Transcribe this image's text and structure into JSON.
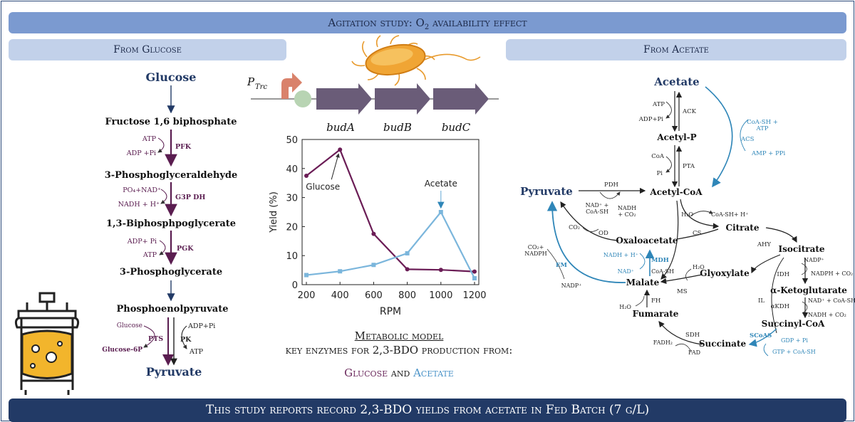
{
  "header": {
    "title": "Agitation study: O",
    "title_sub": "2",
    "title_tail": " availability effect"
  },
  "left_panel": {
    "title": "From Glucose"
  },
  "right_panel": {
    "title": "From Acetate"
  },
  "operon": {
    "promoter": "P",
    "promoter_sub": "Trc",
    "genes": [
      "budA",
      "budB",
      "budC"
    ]
  },
  "glucose_path": {
    "metabolites": [
      "Glucose",
      "Fructose 1,6 biphosphate",
      "3-Phosphoglyceraldehyde",
      "1,3-Biphosphpoglycerate",
      "3-Phosphoglycerate",
      "Phosphoenolpyruvate",
      "Pyruvate"
    ],
    "enzymes": [
      "PFK",
      "G3P DH",
      "PGK",
      "PTS",
      "PK"
    ],
    "cofactors": {
      "pfk_in": "ATP",
      "pfk_out": "ADP +Pi",
      "g3p_in": "PO₄+NAD⁺",
      "g3p_out": "NADH + H⁺",
      "pgk_in": "ADP+ Pi",
      "pgk_out": "ATP",
      "pts_in": "Glucose",
      "pts_out": "Glucose-6P",
      "pk_in": "ADP+Pi",
      "pk_out": "ATP"
    }
  },
  "acetate_path": {
    "metabolites": {
      "acetate": "Acetate",
      "acetyl_p": "Acetyl-P",
      "acetyl_coa": "Acetyl-CoA",
      "pyruvate": "Pyruvate",
      "oxaloacetate": "Oxaloacetate",
      "citrate": "Citrate",
      "isocitrate": "Isocitrate",
      "glyoxylate": "Glyoxylate",
      "malate": "Malate",
      "fumarate": "Fumarate",
      "akg": "α-Ketoglutarate",
      "succinyl": "Succinyl-CoA",
      "succinate": "Succinate"
    },
    "enzymes": {
      "ack": "ACK",
      "acs": "ACS",
      "pta": "PTA",
      "pdh": "PDH",
      "cs": "CS",
      "ahy": "AHY",
      "od": "OD",
      "mdh": "MDH",
      "em": "EM",
      "ms": "MS",
      "il": "IL",
      "idh": "IDH",
      "fh": "FH",
      "akdh": "αKDH",
      "sdh": "SDH",
      "scoas": "SCoAS"
    },
    "cofactors": {
      "ack_atp": "ATP",
      "ack_adp": "ADP+Pi",
      "acs_in": "CoA-SH +",
      "acs_in2": "ATP",
      "acs_out": "AMP + PPi",
      "pta_coa": "CoA",
      "pta_pi": "Pi",
      "pdh_in": "NAD⁺ +",
      "pdh_in2": "CoA-SH",
      "pdh_out": "NADH",
      "pdh_out2": "+ CO₂",
      "cs_h2o": "H₂O",
      "cs_out": "CoA-SH+ H⁺",
      "od_co2": "CO₂",
      "em_out": "CO₂+",
      "em_out2": "NADPH",
      "em_in": "NADP⁺",
      "mdh_out": "NADH + H⁺",
      "mdh_in": "NAD⁺",
      "ms_h2o": "H₂O",
      "ms_coa": "CoA-SH",
      "idh_in": "NADP⁺",
      "idh_out": "NADPH + CO₂",
      "akdh_in": "NAD⁺ + CoA-SH",
      "akdh_out": "NADH + CO₂",
      "fh_h2o": "H₂O",
      "sdh_fadh2": "FADH₂",
      "sdh_fad": "FAD",
      "scoas_in": "GDP + Pi",
      "scoas_out": "GTP + CoA-SH"
    }
  },
  "chart_data": {
    "type": "line",
    "xlabel": "RPM",
    "ylabel": "Yield (%)",
    "xlim": [
      200,
      1200
    ],
    "ylim": [
      0,
      50
    ],
    "xticks": [
      200,
      400,
      600,
      800,
      1000,
      1200
    ],
    "yticks": [
      0,
      10,
      20,
      30,
      40,
      50
    ],
    "series": [
      {
        "name": "Glucose",
        "color": "#6b1d56",
        "marker": "circle",
        "x": [
          200,
          400,
          600,
          800,
          1000,
          1200
        ],
        "y": [
          37.5,
          46.5,
          17.5,
          5.3,
          5.1,
          4.5
        ]
      },
      {
        "name": "Acetate",
        "color": "#7bb6dc",
        "marker": "square",
        "x": [
          200,
          400,
          600,
          800,
          1000,
          1200
        ],
        "y": [
          3.3,
          4.6,
          6.8,
          10.8,
          25,
          2.2
        ]
      }
    ]
  },
  "caption": {
    "line1": "Metabolic model",
    "line2": "key enzymes for 2,3-BDO production from:",
    "glucose": "Glucose",
    "and": " and ",
    "acetate": "Acetate"
  },
  "footer": {
    "text": "This study reports record 2,3-BDO yields from acetate in Fed Batch (7 g/L)"
  },
  "colors": {
    "dark_blue": "#223a66",
    "banner": "#7b9ad0",
    "sub_banner": "#c2d1ea",
    "glucose_purple": "#6b1d56",
    "acetate_blue": "#4a93c8"
  }
}
